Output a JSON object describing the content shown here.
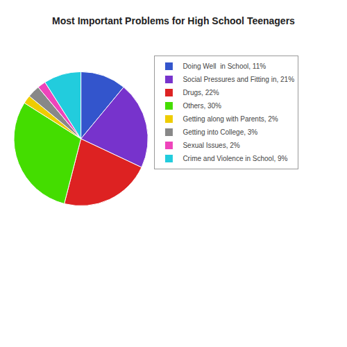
{
  "chart_data": {
    "type": "pie",
    "title": "Most Important Problems for High School Teenagers",
    "categories": [
      "Doing Well  in School, 11%",
      "Social Pressures and Fitting in, 21%",
      "Drugs, 22%",
      "Others, 30%",
      "Getting along with Parents, 2%",
      "Getting into College, 3%",
      "Sexual Issues, 2%",
      "Crime and Violence in School, 9%"
    ],
    "values": [
      11,
      21,
      22,
      30,
      2,
      3,
      2,
      9
    ],
    "colors": [
      "#3355cc",
      "#7733cc",
      "#dd2222",
      "#44dd00",
      "#eecc00",
      "#888888",
      "#ee44bb",
      "#22ccdd"
    ],
    "legend": "right"
  }
}
